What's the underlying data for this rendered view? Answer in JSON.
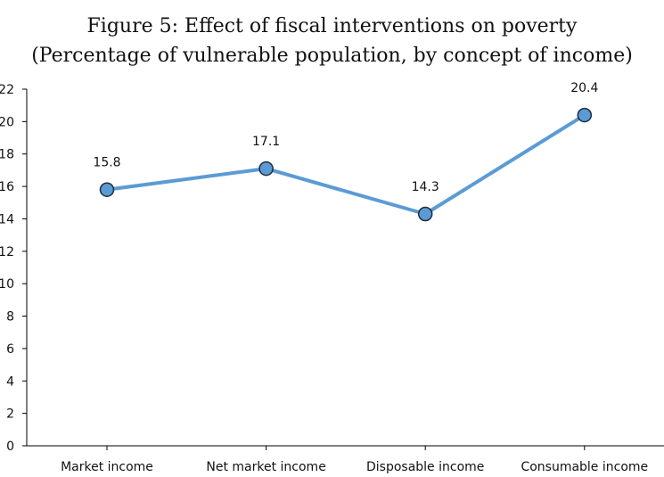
{
  "title": {
    "line1": "Figure 5: Effect of fiscal interventions on poverty",
    "line2": "(Percentage of vulnerable population, by concept of income)"
  },
  "colors": {
    "line": "#5b9bd5",
    "marker_fill": "#5b9bd5",
    "marker_stroke": "#1f2d3d",
    "axis": "#000000"
  },
  "chart_data": {
    "type": "line",
    "title": "Figure 5: Effect of fiscal interventions on poverty",
    "subtitle": "(Percentage of vulnerable population, by concept of income)",
    "categories": [
      "Market income",
      "Net market income",
      "Disposable income",
      "Consumable income"
    ],
    "values": [
      15.8,
      17.1,
      14.3,
      20.4
    ],
    "data_labels": [
      "15.8",
      "17.1",
      "14.3",
      "20.4"
    ],
    "ylim": [
      0,
      22
    ],
    "yticks": [
      0,
      2,
      4,
      6,
      8,
      10,
      12,
      14,
      16,
      18,
      20,
      22
    ],
    "xlabel": "",
    "ylabel": "",
    "grid": false,
    "legend": "none"
  }
}
